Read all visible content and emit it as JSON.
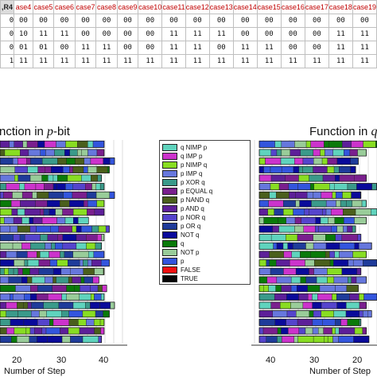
{
  "table": {
    "corner_label": ",R4",
    "headers": [
      "ase4",
      "case5",
      "case6",
      "case7",
      "case8",
      "case9",
      "case10",
      "case11",
      "case12",
      "case13",
      "case14",
      "case15",
      "case16",
      "case17",
      "case18",
      "case19"
    ],
    "rows": [
      [
        "00",
        "00",
        "00",
        "00",
        "00",
        "00",
        "00",
        "00",
        "00",
        "00",
        "00",
        "00",
        "00",
        "00",
        "00",
        "00"
      ],
      [
        "10",
        "11",
        "11",
        "00",
        "00",
        "00",
        "00",
        "11",
        "11",
        "11",
        "00",
        "00",
        "00",
        "00",
        "11",
        "11"
      ],
      [
        "01",
        "01",
        "00",
        "11",
        "11",
        "00",
        "00",
        "11",
        "11",
        "00",
        "11",
        "11",
        "00",
        "00",
        "11",
        "11"
      ],
      [
        "11",
        "11",
        "11",
        "11",
        "11",
        "11",
        "11",
        "11",
        "11",
        "11",
        "11",
        "11",
        "11",
        "11",
        "11",
        "11"
      ]
    ],
    "row_stubs": [
      "0",
      "0",
      "0",
      "1"
    ]
  },
  "left_panel": {
    "title_prefix": "nction in ",
    "title_italic": "p",
    "title_suffix": "-bit",
    "xlabel": "Number of Step",
    "ticks": [
      "20",
      "30",
      "40"
    ]
  },
  "right_panel": {
    "title_prefix": "Function in ",
    "title_italic": "q",
    "title_suffix": "-",
    "xlabel": "Number of Step",
    "ticks": [
      "40",
      "30",
      "20"
    ]
  },
  "legend": [
    {
      "label": "q NIMP p",
      "color": "#5fd3bd"
    },
    {
      "label": "q IMP p",
      "color": "#cc33cc"
    },
    {
      "label": "p NIMP q",
      "color": "#88dd22"
    },
    {
      "label": "p IMP q",
      "color": "#6677dd"
    },
    {
      "label": "p XOR q",
      "color": "#3a9a8a"
    },
    {
      "label": "p EQUAL q",
      "color": "#7a1f8e"
    },
    {
      "label": "p NAND q",
      "color": "#4a5f1c"
    },
    {
      "label": "p AND q",
      "color": "#5d1f99"
    },
    {
      "label": "p NOR q",
      "color": "#5544cc"
    },
    {
      "label": "p OR q",
      "color": "#1f3b9a"
    },
    {
      "label": "NOT q",
      "color": "#0a0a9a"
    },
    {
      "label": "q",
      "color": "#0a7a0a"
    },
    {
      "label": "NOT p",
      "color": "#99cc99"
    },
    {
      "label": "p",
      "color": "#3355dd"
    },
    {
      "label": "FALSE",
      "color": "#ee1111"
    },
    {
      "label": "TRUE",
      "color": "#050505"
    }
  ],
  "chart_data": [
    {
      "type": "bar",
      "orientation": "horizontal-stacked",
      "title": "Function in p-bit (cropped)",
      "xlabel": "Number of Step",
      "x_ticks": [
        20,
        30,
        40
      ],
      "xlim": [
        12,
        49
      ],
      "series_colors_from": "legend",
      "row_lengths": [
        40,
        40,
        44,
        42,
        39,
        40,
        44,
        40,
        40,
        34,
        42,
        40,
        39,
        40,
        42,
        40,
        38,
        41,
        40,
        44,
        42,
        40,
        40,
        39
      ]
    },
    {
      "type": "bar",
      "orientation": "horizontal-stacked",
      "title": "Function in q-bit (cropped)",
      "xlabel": "Number of Step",
      "x_ticks": [
        40,
        30,
        20
      ],
      "x_reversed": true,
      "series_colors_from": "legend",
      "row_lengths": [
        44,
        40,
        37,
        36,
        40,
        44,
        38,
        40,
        44,
        40,
        36,
        38,
        42,
        40,
        44,
        38,
        40,
        37,
        44,
        40,
        42,
        38,
        40,
        41
      ]
    }
  ]
}
